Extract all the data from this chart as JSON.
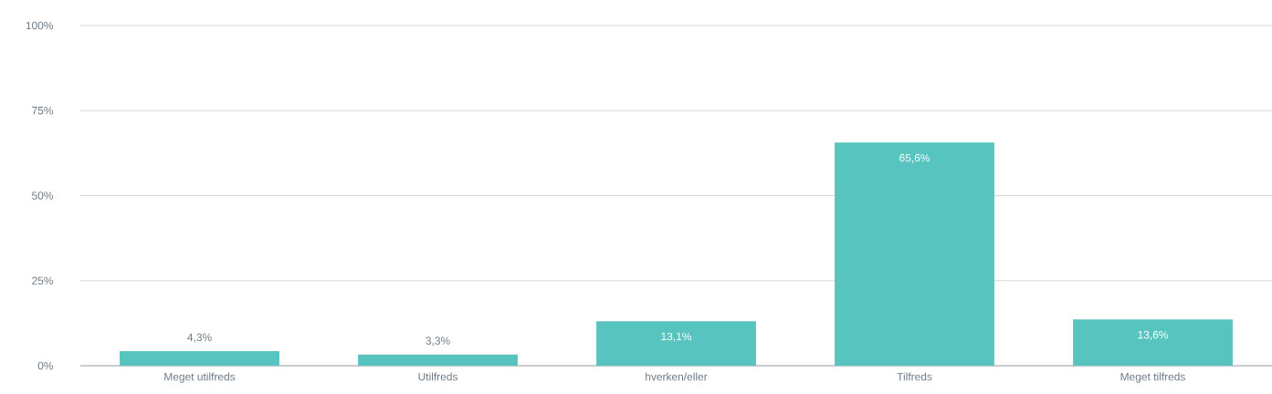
{
  "chart_data": {
    "type": "bar",
    "categories": [
      "Meget utilfreds",
      "Utilfreds",
      "hverken/eller",
      "Tilfreds",
      "Meget tilfreds"
    ],
    "values": [
      4.3,
      3.3,
      13.1,
      65.6,
      13.6
    ],
    "value_labels": [
      "4,3%",
      "3,3%",
      "13,1%",
      "65,6%",
      "13,6%"
    ],
    "color": "#57c4c0",
    "ylim": [
      0,
      100
    ],
    "yticks": [
      {
        "value": 0,
        "label": "0%"
      },
      {
        "value": 25,
        "label": "25%"
      },
      {
        "value": 50,
        "label": "50%"
      },
      {
        "value": 75,
        "label": "75%"
      },
      {
        "value": 100,
        "label": "100%"
      }
    ],
    "grid": "y"
  }
}
